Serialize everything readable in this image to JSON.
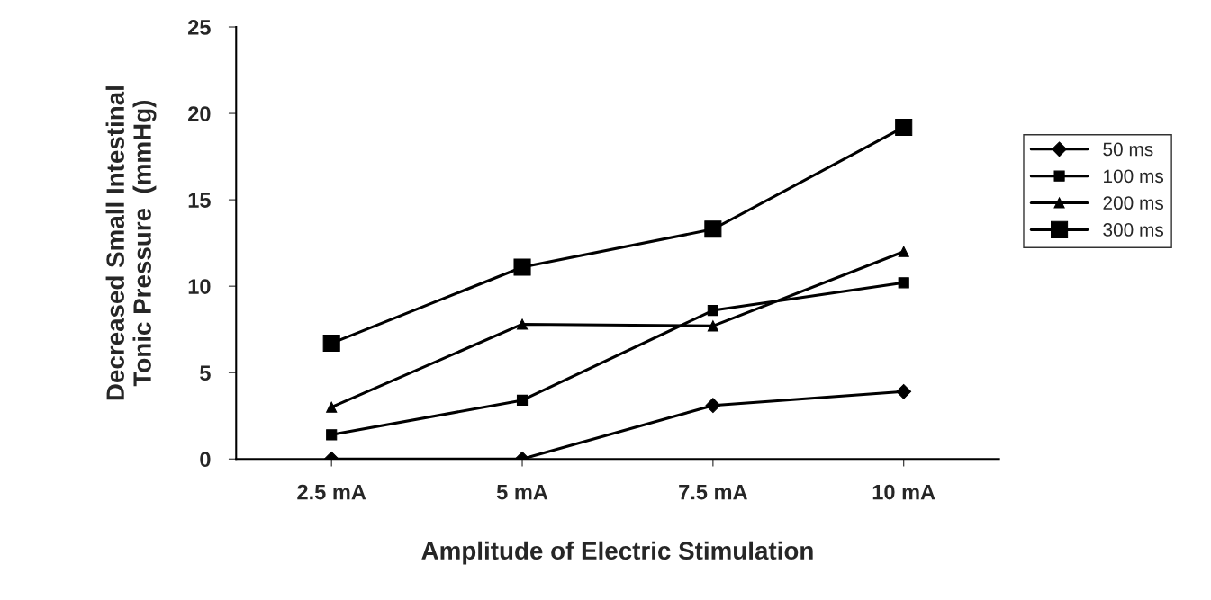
{
  "chart_data": {
    "type": "line",
    "xlabel": "Amplitude of Electric Stimulation",
    "ylabel": "Decreased Small Intestinal\nTonic Pressure  (mmHg)",
    "categories": [
      "2.5 mA",
      "5 mA",
      "7.5 mA",
      "10 mA"
    ],
    "series": [
      {
        "name": "50 ms",
        "color": "#000000",
        "marker": "diamond",
        "values": [
          0,
          0,
          3.1,
          3.9
        ]
      },
      {
        "name": "100 ms",
        "color": "#000000",
        "marker": "square",
        "values": [
          1.4,
          3.4,
          8.6,
          10.2
        ]
      },
      {
        "name": "200 ms",
        "color": "#000000",
        "marker": "triangle",
        "values": [
          3.0,
          7.8,
          7.7,
          12.0
        ]
      },
      {
        "name": "300 ms",
        "color": "#000000",
        "marker": "square",
        "values": [
          6.7,
          11.1,
          13.3,
          19.2
        ]
      }
    ],
    "ylim": [
      0,
      25
    ],
    "yticks": [
      0,
      5,
      10,
      15,
      20,
      25
    ],
    "grid": false,
    "legend": "right"
  }
}
